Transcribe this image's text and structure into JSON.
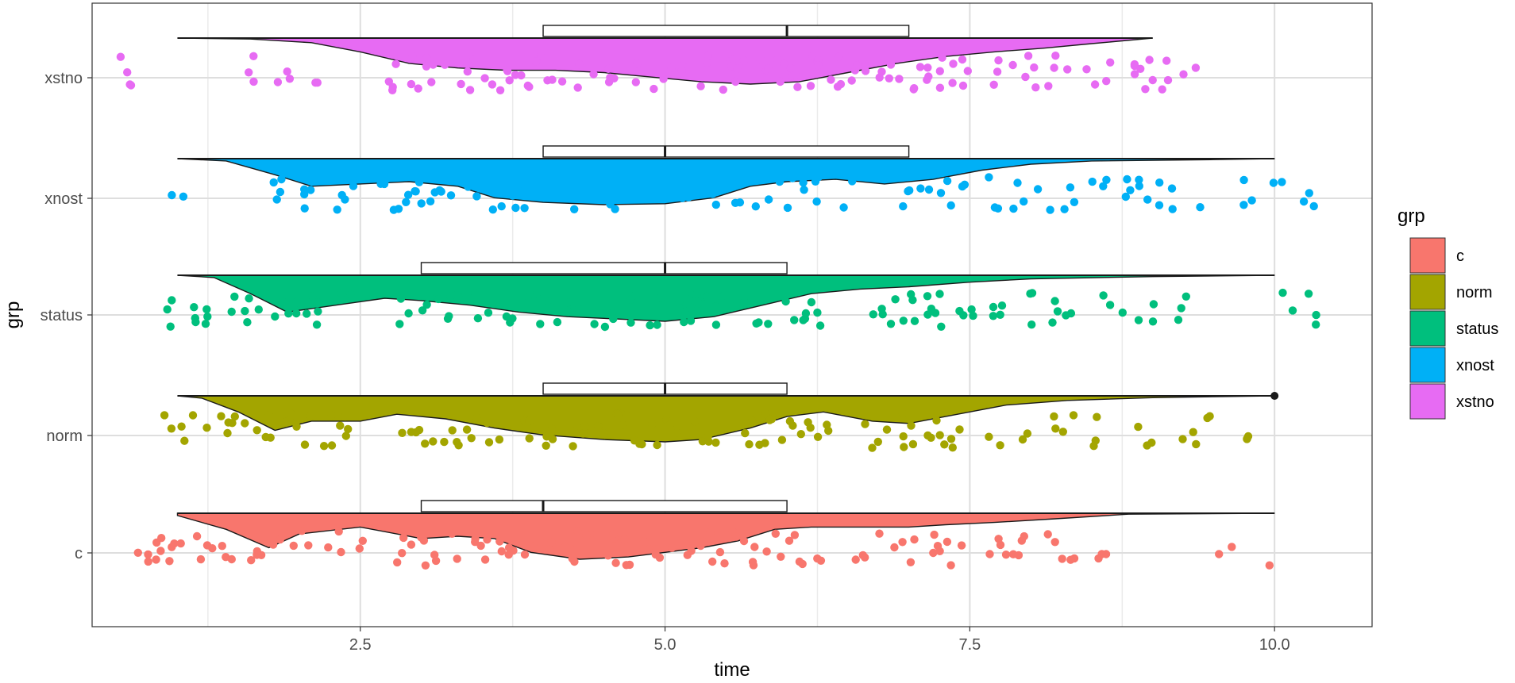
{
  "chart_data": {
    "type": "raincloud",
    "title": "",
    "xlabel": "time",
    "ylabel": "grp",
    "xlim": [
      0.3,
      10.8
    ],
    "x_ticks": [
      2.5,
      5.0,
      7.5,
      10.0
    ],
    "x_tick_labels": [
      "2.5",
      "5.0",
      "7.5",
      "10.0"
    ],
    "grid": true,
    "categories": [
      "c",
      "norm",
      "status",
      "xnost",
      "xstno"
    ],
    "legend": {
      "title": "grp",
      "position": "right",
      "labels": [
        "c",
        "norm",
        "status",
        "xnost",
        "xstno"
      ]
    },
    "series": [
      {
        "name": "c",
        "color": "#F8766D",
        "range": [
          1.0,
          10.0
        ],
        "q1": 3.0,
        "median": 4.0,
        "q3": 6.0,
        "density": [
          [
            1.0,
            0.05
          ],
          [
            1.4,
            0.35
          ],
          [
            1.75,
            0.75
          ],
          [
            2.0,
            0.45
          ],
          [
            2.5,
            0.3
          ],
          [
            3.0,
            0.55
          ],
          [
            3.3,
            0.5
          ],
          [
            3.6,
            0.55
          ],
          [
            3.9,
            0.85
          ],
          [
            4.3,
            1.0
          ],
          [
            4.7,
            0.95
          ],
          [
            5.0,
            0.85
          ],
          [
            5.3,
            0.75
          ],
          [
            5.6,
            0.6
          ],
          [
            5.9,
            0.35
          ],
          [
            6.2,
            0.3
          ],
          [
            6.6,
            0.3
          ],
          [
            7.0,
            0.3
          ],
          [
            7.3,
            0.25
          ],
          [
            7.7,
            0.2
          ],
          [
            8.2,
            0.12
          ],
          [
            8.8,
            0.02
          ],
          [
            10.0,
            0.0
          ]
        ],
        "outliers": []
      },
      {
        "name": "norm",
        "color": "#A3A500",
        "range": [
          1.0,
          10.0
        ],
        "q1": 4.0,
        "median": 5.0,
        "q3": 6.0,
        "density": [
          [
            1.0,
            0.0
          ],
          [
            1.2,
            0.05
          ],
          [
            1.5,
            0.35
          ],
          [
            1.8,
            0.75
          ],
          [
            2.1,
            0.55
          ],
          [
            2.5,
            0.55
          ],
          [
            2.8,
            0.4
          ],
          [
            3.2,
            0.5
          ],
          [
            3.6,
            0.7
          ],
          [
            4.0,
            0.85
          ],
          [
            4.5,
            0.95
          ],
          [
            5.0,
            1.0
          ],
          [
            5.3,
            0.95
          ],
          [
            5.7,
            0.7
          ],
          [
            6.0,
            0.45
          ],
          [
            6.3,
            0.35
          ],
          [
            6.7,
            0.55
          ],
          [
            7.0,
            0.6
          ],
          [
            7.4,
            0.4
          ],
          [
            7.8,
            0.2
          ],
          [
            8.3,
            0.1
          ],
          [
            9.0,
            0.04
          ],
          [
            10.0,
            0.0
          ]
        ],
        "outliers": [
          10.0
        ]
      },
      {
        "name": "status",
        "color": "#00BF7D",
        "range": [
          1.0,
          10.0
        ],
        "q1": 3.0,
        "median": 5.0,
        "q3": 6.0,
        "density": [
          [
            1.0,
            0.0
          ],
          [
            1.3,
            0.05
          ],
          [
            1.6,
            0.4
          ],
          [
            1.9,
            0.8
          ],
          [
            2.3,
            0.65
          ],
          [
            2.7,
            0.5
          ],
          [
            3.0,
            0.55
          ],
          [
            3.4,
            0.65
          ],
          [
            3.8,
            0.8
          ],
          [
            4.2,
            0.9
          ],
          [
            4.6,
            0.95
          ],
          [
            5.0,
            1.0
          ],
          [
            5.4,
            0.9
          ],
          [
            5.8,
            0.65
          ],
          [
            6.2,
            0.4
          ],
          [
            6.6,
            0.3
          ],
          [
            7.0,
            0.25
          ],
          [
            7.5,
            0.15
          ],
          [
            8.0,
            0.08
          ],
          [
            9.0,
            0.03
          ],
          [
            10.0,
            0.0
          ]
        ],
        "outliers": []
      },
      {
        "name": "xnost",
        "color": "#00B0F6",
        "range": [
          1.0,
          10.0
        ],
        "q1": 4.0,
        "median": 5.0,
        "q3": 7.0,
        "density": [
          [
            1.0,
            0.0
          ],
          [
            1.4,
            0.05
          ],
          [
            1.8,
            0.35
          ],
          [
            2.1,
            0.6
          ],
          [
            2.5,
            0.55
          ],
          [
            2.9,
            0.5
          ],
          [
            3.3,
            0.6
          ],
          [
            3.6,
            0.85
          ],
          [
            4.0,
            0.95
          ],
          [
            4.5,
            1.0
          ],
          [
            5.0,
            0.98
          ],
          [
            5.4,
            0.85
          ],
          [
            5.7,
            0.6
          ],
          [
            6.0,
            0.5
          ],
          [
            6.4,
            0.45
          ],
          [
            6.8,
            0.55
          ],
          [
            7.2,
            0.45
          ],
          [
            7.6,
            0.25
          ],
          [
            8.0,
            0.12
          ],
          [
            8.5,
            0.05
          ],
          [
            9.5,
            0.02
          ],
          [
            10.0,
            0.0
          ]
        ],
        "outliers": []
      },
      {
        "name": "xstno",
        "color": "#E76BF3",
        "range": [
          1.0,
          9.0
        ],
        "q1": 4.0,
        "median": 6.0,
        "q3": 7.0,
        "density": [
          [
            1.0,
            0.0
          ],
          [
            1.6,
            0.02
          ],
          [
            2.1,
            0.1
          ],
          [
            2.5,
            0.3
          ],
          [
            2.9,
            0.55
          ],
          [
            3.3,
            0.65
          ],
          [
            3.7,
            0.7
          ],
          [
            4.1,
            0.7
          ],
          [
            4.5,
            0.75
          ],
          [
            4.9,
            0.85
          ],
          [
            5.3,
            0.95
          ],
          [
            5.7,
            1.0
          ],
          [
            6.1,
            0.95
          ],
          [
            6.5,
            0.75
          ],
          [
            6.9,
            0.55
          ],
          [
            7.3,
            0.4
          ],
          [
            7.7,
            0.3
          ],
          [
            8.1,
            0.22
          ],
          [
            8.5,
            0.12
          ],
          [
            9.0,
            0.0
          ]
        ],
        "outliers": []
      }
    ],
    "jitter_points_x": {
      "c": [
        0.7,
        0.8,
        0.9,
        1.0,
        1.2,
        1.3,
        1.4,
        1.6,
        1.7,
        1.8,
        1.9,
        2.0,
        2.1,
        2.2,
        2.3,
        2.5,
        2.8,
        2.9,
        3.0,
        3.1,
        3.2,
        3.3,
        3.4,
        3.5,
        3.6,
        3.7,
        3.8,
        3.9,
        4.0,
        4.1,
        4.2,
        4.3,
        4.4,
        4.5,
        4.6,
        4.7,
        4.8,
        4.9,
        5.0,
        5.1,
        5.2,
        5.3,
        5.4,
        5.5,
        5.6,
        5.7,
        5.8,
        5.9,
        6.0,
        6.1,
        6.2,
        6.3,
        6.6,
        6.8,
        6.9,
        7.0,
        7.1,
        7.2,
        7.3,
        7.4,
        7.7,
        7.8,
        7.9,
        8.0,
        8.2,
        8.3,
        8.6,
        9.6,
        10.0
      ],
      "norm": [
        0.9,
        1.0,
        1.1,
        1.2,
        1.4,
        1.5,
        1.6,
        1.7,
        1.8,
        1.9,
        2.0,
        2.1,
        2.2,
        2.3,
        2.4,
        2.9,
        3.0,
        3.1,
        3.2,
        3.3,
        3.4,
        3.5,
        3.6,
        3.7,
        3.8,
        3.9,
        4.0,
        4.1,
        4.2,
        4.3,
        4.4,
        4.5,
        4.6,
        4.7,
        4.8,
        4.9,
        5.0,
        5.1,
        5.2,
        5.3,
        5.4,
        5.7,
        5.8,
        5.9,
        6.0,
        6.1,
        6.2,
        6.3,
        6.7,
        6.8,
        6.9,
        7.0,
        7.1,
        7.2,
        7.3,
        7.4,
        7.7,
        7.9,
        8.0,
        8.2,
        8.3,
        8.5,
        8.9,
        9.0,
        9.2,
        9.3,
        9.5,
        9.8
      ],
      "status": [
        0.9,
        1.0,
        1.1,
        1.2,
        1.3,
        1.5,
        1.6,
        1.7,
        1.8,
        1.9,
        2.0,
        2.1,
        2.2,
        2.3,
        2.4,
        2.8,
        2.9,
        3.0,
        3.1,
        3.2,
        3.3,
        3.5,
        3.6,
        3.7,
        3.8,
        3.9,
        4.0,
        4.1,
        4.2,
        4.3,
        4.4,
        4.5,
        4.6,
        4.7,
        4.8,
        4.9,
        5.0,
        5.1,
        5.2,
        5.3,
        5.4,
        5.5,
        5.6,
        5.7,
        5.8,
        5.9,
        6.0,
        6.1,
        6.2,
        6.3,
        6.7,
        6.8,
        6.9,
        7.0,
        7.1,
        7.2,
        7.3,
        7.4,
        7.5,
        7.7,
        7.8,
        8.0,
        8.2,
        8.3,
        8.6,
        8.7,
        8.9,
        9.0,
        9.2,
        9.3,
        10.1,
        10.3
      ],
      "xnost": [
        1.0,
        1.8,
        1.9,
        2.0,
        2.1,
        2.2,
        2.3,
        2.4,
        2.7,
        2.8,
        2.9,
        3.0,
        3.1,
        3.2,
        3.4,
        3.6,
        3.7,
        3.8,
        3.9,
        4.0,
        4.1,
        4.2,
        4.3,
        4.4,
        4.5,
        4.6,
        4.7,
        4.8,
        4.9,
        5.0,
        5.1,
        5.2,
        5.3,
        5.4,
        5.6,
        5.8,
        5.9,
        6.0,
        6.1,
        6.2,
        6.3,
        6.5,
        6.7,
        6.8,
        6.9,
        7.0,
        7.1,
        7.2,
        7.3,
        7.4,
        7.7,
        7.9,
        8.0,
        8.1,
        8.3,
        8.5,
        8.6,
        8.8,
        8.9,
        9.0,
        9.1,
        9.2,
        9.4,
        9.8,
        10.0,
        10.3
      ],
      "xstno": [
        0.5,
        0.6,
        1.6,
        1.8,
        1.9,
        2.1,
        2.7,
        2.8,
        2.9,
        3.0,
        3.1,
        3.2,
        3.3,
        3.4,
        3.5,
        3.6,
        3.7,
        3.8,
        3.9,
        4.0,
        4.1,
        4.2,
        4.3,
        4.4,
        4.5,
        4.6,
        4.8,
        4.9,
        5.0,
        5.1,
        5.2,
        5.3,
        5.4,
        5.5,
        5.6,
        5.7,
        5.8,
        5.9,
        6.0,
        6.1,
        6.2,
        6.3,
        6.4,
        6.5,
        6.6,
        6.7,
        6.8,
        6.9,
        7.0,
        7.1,
        7.2,
        7.3,
        7.4,
        7.5,
        7.7,
        7.9,
        8.0,
        8.1,
        8.2,
        8.3,
        8.5,
        8.6,
        8.8,
        8.9,
        9.0,
        9.1,
        9.2,
        9.3
      ]
    }
  }
}
